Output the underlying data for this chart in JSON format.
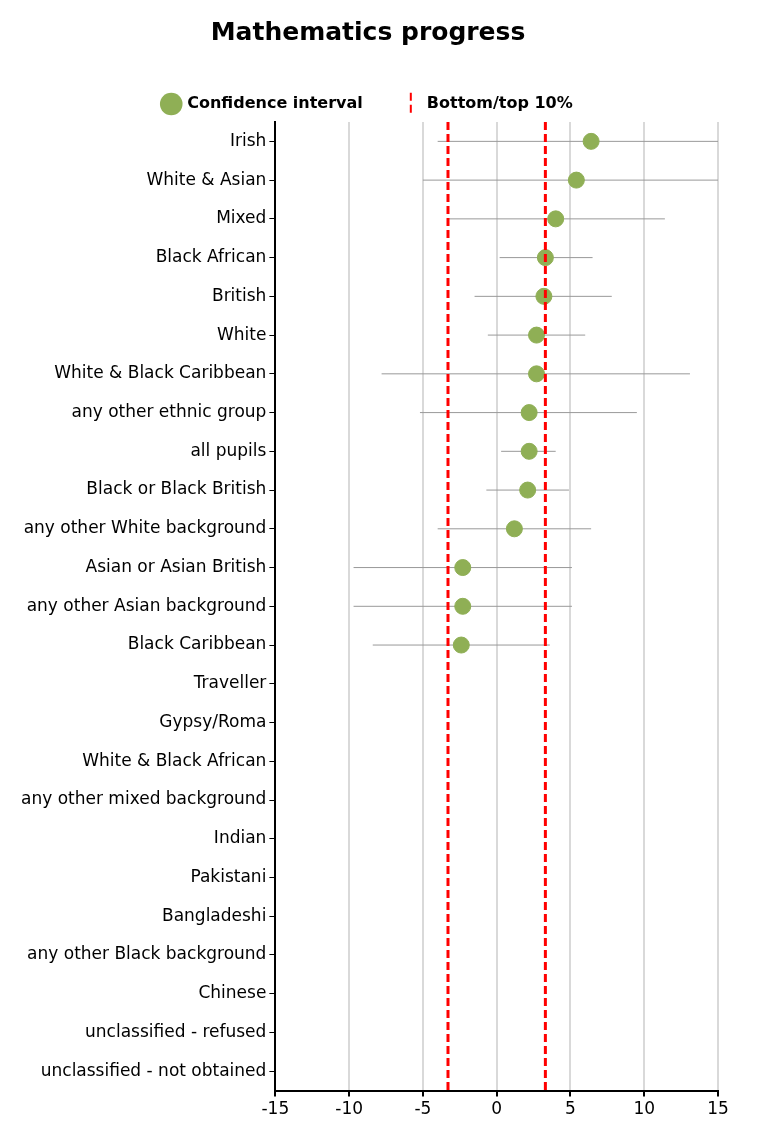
{
  "chart_data": {
    "type": "scatter",
    "orientation": "horizontal",
    "title": "Mathematics progress",
    "categories": [
      "Irish",
      "White & Asian",
      "Mixed",
      "Black African",
      "British",
      "White",
      "White & Black Caribbean",
      "any other ethnic group",
      "all pupils",
      "Black or Black British",
      "any other White background",
      "Asian or Asian British",
      "any other Asian background",
      "Black Caribbean",
      "Traveller",
      "Gypsy/Roma",
      "White & Black African",
      "any other mixed background",
      "Indian",
      "Pakistani",
      "Bangladeshi",
      "any other Black background",
      "Chinese",
      "unclassified - refused",
      "unclassified - not obtained"
    ],
    "series": [
      {
        "name": "Confidence interval",
        "color": "#8faf55",
        "values": [
          6.4,
          5.4,
          4.0,
          3.3,
          3.2,
          2.7,
          2.7,
          2.2,
          2.2,
          2.1,
          1.2,
          -2.3,
          -2.3,
          -2.4,
          null,
          null,
          null,
          null,
          null,
          null,
          null,
          null,
          null,
          null,
          null
        ],
        "errors": [
          [
            -4.0,
            15
          ],
          [
            -5.0,
            15
          ],
          [
            -3.3,
            11.4
          ],
          [
            0.2,
            6.5
          ],
          [
            -1.5,
            7.8
          ],
          [
            -0.6,
            6.0
          ],
          [
            -7.8,
            13.1
          ],
          [
            -5.2,
            9.5
          ],
          [
            0.3,
            4.0
          ],
          [
            -0.7,
            4.9
          ],
          [
            -4.0,
            6.4
          ],
          [
            -9.7,
            5.1
          ],
          [
            -9.7,
            5.1
          ],
          [
            -8.4,
            3.6
          ],
          null,
          null,
          null,
          null,
          null,
          null,
          null,
          null,
          null,
          null,
          null
        ]
      }
    ],
    "xlim": [
      -15,
      15
    ],
    "xticks": [
      -15,
      -10,
      -5,
      0,
      5,
      10,
      15
    ],
    "ref_lines": [
      {
        "axis": "x",
        "value": -3.3,
        "label": "Bottom/top 10%",
        "color": "#ff0000",
        "line_style": "dashed"
      },
      {
        "axis": "x",
        "value": 3.3,
        "color": "#ff0000",
        "line_style": "dashed"
      }
    ],
    "grid": "x",
    "legend": "top",
    "marker": "circle"
  }
}
